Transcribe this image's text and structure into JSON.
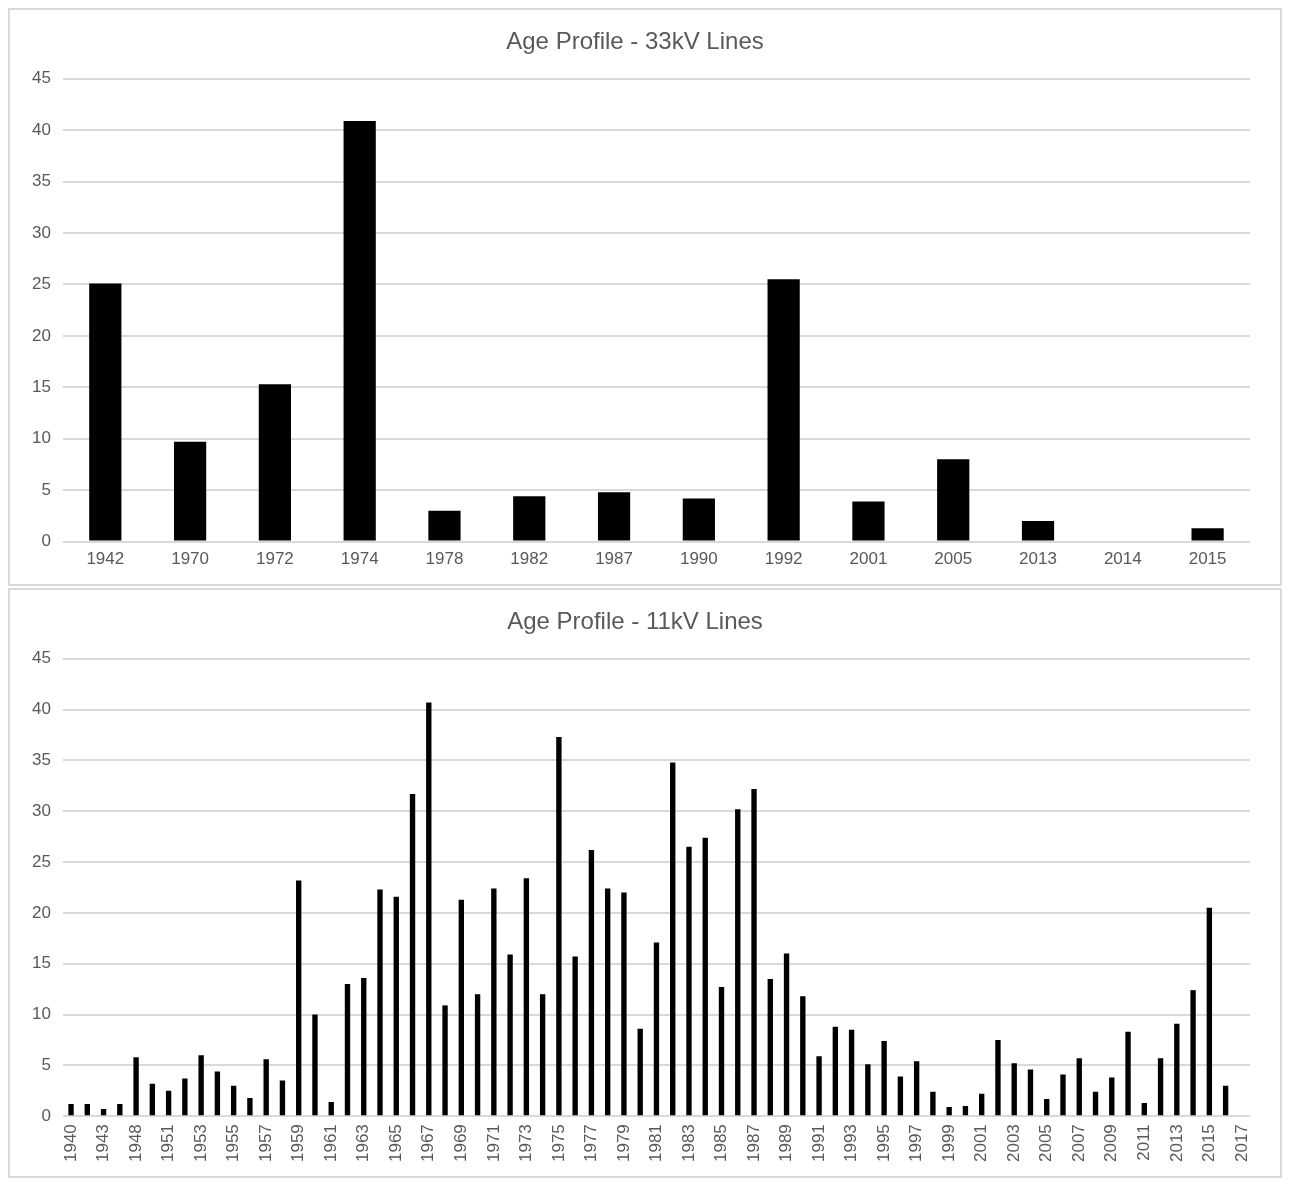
{
  "chart_data": [
    {
      "type": "bar",
      "title": "Age Profile - 33kV Lines",
      "categories": [
        "1942",
        "1970",
        "1972",
        "1974",
        "1978",
        "1982",
        "1987",
        "1990",
        "1992",
        "2001",
        "2005",
        "2013",
        "2014",
        "2015"
      ],
      "series": [
        {
          "color": "#000000",
          "values": [
            25.1,
            9.7,
            15.3,
            40.9,
            3.0,
            4.4,
            4.8,
            4.2,
            25.5,
            3.9,
            8.0,
            2.0,
            0,
            1.3
          ]
        }
      ],
      "ylim": [
        0,
        45
      ],
      "yticks": [
        0,
        5,
        10,
        15,
        20,
        25,
        30,
        35,
        40,
        45
      ],
      "grid": "y",
      "legend": false
    },
    {
      "type": "bar",
      "title": "Age Profile - 11kV Lines",
      "categories": [
        "1940",
        null,
        "1943",
        null,
        "1948",
        null,
        "1951",
        null,
        "1953",
        null,
        "1955",
        null,
        "1957",
        null,
        "1959",
        null,
        "1961",
        null,
        "1963",
        null,
        "1965",
        null,
        "1967",
        null,
        "1969",
        null,
        "1971",
        null,
        "1973",
        null,
        "1975",
        null,
        "1977",
        null,
        "1979",
        null,
        "1981",
        null,
        "1983",
        null,
        "1985",
        null,
        "1987",
        null,
        "1989",
        null,
        "1991",
        null,
        "1993",
        null,
        "1995",
        null,
        "1997",
        null,
        "1999",
        null,
        "2001",
        null,
        "2003",
        null,
        "2005",
        null,
        "2007",
        null,
        "2009",
        null,
        "2011",
        null,
        "2013",
        null,
        "2015",
        null,
        "2017"
      ],
      "series": [
        {
          "color": "#000000",
          "values": [
            1.2,
            1.2,
            0.7,
            1.2,
            5.8,
            3.2,
            2.5,
            3.7,
            6.0,
            4.4,
            3.0,
            1.8,
            5.6,
            3.5,
            23.2,
            10.0,
            1.4,
            13.0,
            13.6,
            22.3,
            21.6,
            31.7,
            40.7,
            10.9,
            21.3,
            12.0,
            22.4,
            15.9,
            23.4,
            12.0,
            37.3,
            15.7,
            26.2,
            22.4,
            22.0,
            8.6,
            17.1,
            34.8,
            26.5,
            27.4,
            12.7,
            30.2,
            32.2,
            13.5,
            16.0,
            11.8,
            5.9,
            8.8,
            8.5,
            5.1,
            7.4,
            3.9,
            5.4,
            2.4,
            0.9,
            1.0,
            2.2,
            7.5,
            5.2,
            4.6,
            1.7,
            4.1,
            5.7,
            2.4,
            3.8,
            8.3,
            1.3,
            5.7,
            9.1,
            12.4,
            20.5,
            3.0,
            0
          ]
        }
      ],
      "ylim": [
        0,
        45
      ],
      "yticks": [
        0,
        5,
        10,
        15,
        20,
        25,
        30,
        35,
        40,
        45
      ],
      "grid": "y",
      "legend": false
    }
  ]
}
